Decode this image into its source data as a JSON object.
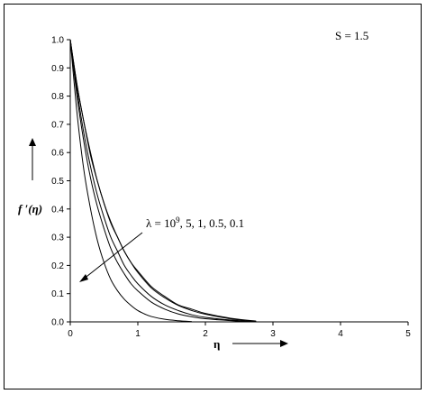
{
  "chart_data": {
    "type": "line",
    "title": "",
    "xlabel": "η",
    "ylabel": "f ′(η)",
    "xlim": [
      0,
      5
    ],
    "ylim": [
      0,
      1.0
    ],
    "x_ticks": [
      "0",
      "1",
      "2",
      "3",
      "4",
      "5"
    ],
    "y_ticks": [
      "0.0",
      "0.1",
      "0.2",
      "0.3",
      "0.4",
      "0.5",
      "0.6",
      "0.7",
      "0.8",
      "0.9",
      "1.0"
    ],
    "grid": false,
    "legend": "none",
    "annotations": {
      "parameter": "S = 1.5",
      "lambda_label": "λ = 10",
      "lambda_exp": "9",
      "lambda_rest": ", 5, 1, 0.5, 0.1"
    },
    "series": [
      {
        "x": [
          0,
          0.1,
          0.2,
          0.3,
          0.4,
          0.5,
          0.6,
          0.7,
          0.8,
          0.9,
          1.0,
          1.2,
          1.4,
          1.6,
          1.8,
          2.0,
          2.4,
          2.75
        ],
        "values": [
          1.0,
          0.84,
          0.71,
          0.59,
          0.5,
          0.42,
          0.35,
          0.3,
          0.25,
          0.21,
          0.18,
          0.125,
          0.09,
          0.06,
          0.045,
          0.03,
          0.012,
          0.003
        ]
      },
      {
        "x": [
          0,
          0.1,
          0.2,
          0.3,
          0.4,
          0.5,
          0.6,
          0.7,
          0.8,
          0.9,
          1.0,
          1.2,
          1.4,
          1.6,
          1.8,
          2.0,
          2.4,
          2.75
        ],
        "values": [
          1.0,
          0.84,
          0.71,
          0.6,
          0.5,
          0.42,
          0.355,
          0.3,
          0.25,
          0.21,
          0.175,
          0.12,
          0.085,
          0.058,
          0.04,
          0.027,
          0.01,
          0.002
        ]
      },
      {
        "x": [
          0,
          0.1,
          0.2,
          0.3,
          0.4,
          0.5,
          0.6,
          0.7,
          0.8,
          0.9,
          1.0,
          1.2,
          1.4,
          1.6,
          1.8,
          2.0,
          2.4,
          2.75
        ],
        "values": [
          1.0,
          0.82,
          0.67,
          0.55,
          0.45,
          0.37,
          0.3,
          0.25,
          0.2,
          0.165,
          0.135,
          0.09,
          0.06,
          0.04,
          0.025,
          0.016,
          0.006,
          0.001
        ]
      },
      {
        "x": [
          0,
          0.1,
          0.2,
          0.3,
          0.4,
          0.5,
          0.6,
          0.7,
          0.8,
          0.9,
          1.0,
          1.2,
          1.4,
          1.6,
          1.8,
          2.0,
          2.4,
          2.75
        ],
        "values": [
          1.0,
          0.8,
          0.64,
          0.51,
          0.41,
          0.33,
          0.26,
          0.21,
          0.17,
          0.135,
          0.11,
          0.07,
          0.045,
          0.028,
          0.018,
          0.011,
          0.004,
          0.001
        ]
      },
      {
        "x": [
          0,
          0.1,
          0.2,
          0.3,
          0.4,
          0.5,
          0.6,
          0.7,
          0.8,
          0.9,
          1.0,
          1.1,
          1.2,
          1.4,
          1.6,
          1.8
        ],
        "values": [
          1.0,
          0.74,
          0.54,
          0.4,
          0.29,
          0.21,
          0.15,
          0.11,
          0.08,
          0.058,
          0.04,
          0.028,
          0.019,
          0.009,
          0.004,
          0.001
        ]
      }
    ]
  }
}
